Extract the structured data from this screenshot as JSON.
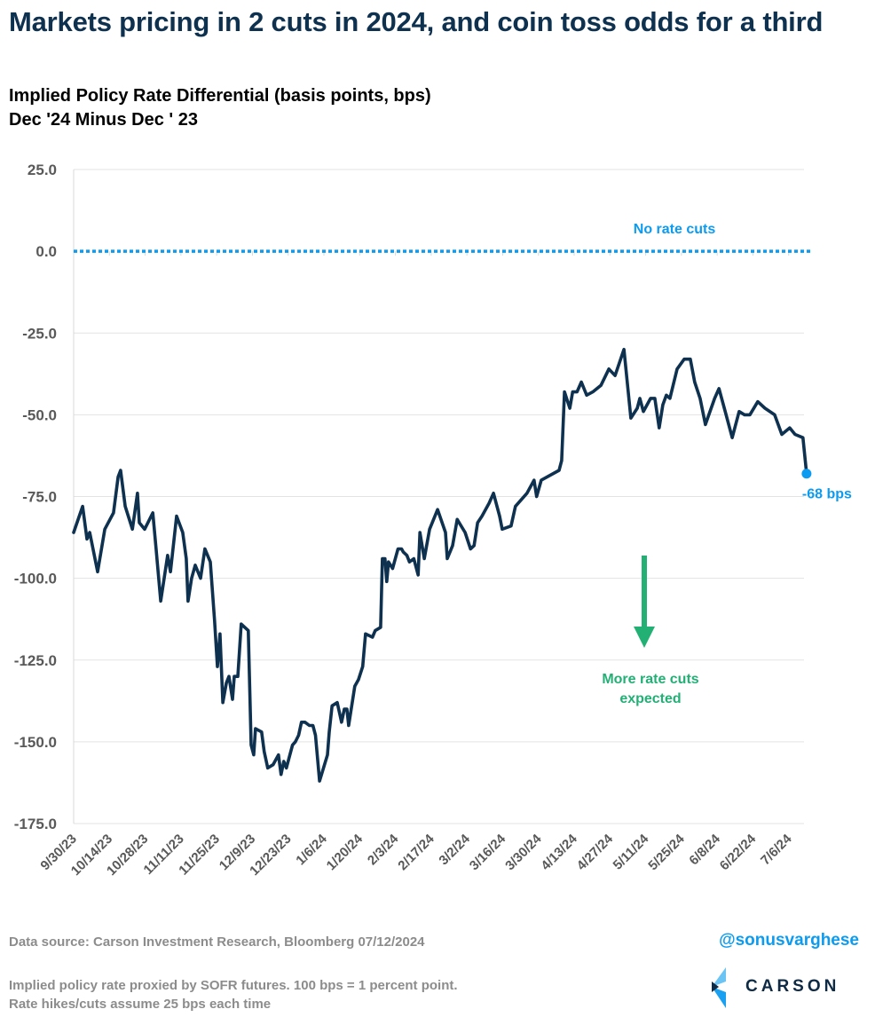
{
  "header": {
    "title": "Markets pricing in 2 cuts in 2024, and coin toss odds for a third",
    "subtitle_line1": "Implied Policy Rate Differential (basis points, bps)",
    "subtitle_line2": "Dec '24 Minus Dec ' 23"
  },
  "footer": {
    "source": "Data source: Carson Investment Research, Bloomberg   07/12/2024",
    "note_line1": "Implied policy rate proxied by SOFR futures. 100 bps = 1 percent point.",
    "note_line2": "Rate hikes/cuts assume 25 bps each time",
    "handle": "@sonusvarghese",
    "logo_text": "CARSON"
  },
  "colors": {
    "line": "#0e3150",
    "reference": "#0b9bf0",
    "highlight": "#0b9bf0",
    "arrow": "#23b075",
    "grid": "#e3e3e3",
    "axis_text": "#595959"
  },
  "chart_data": {
    "type": "line",
    "title": "Implied Policy Rate Differential (basis points, bps) Dec '24 Minus Dec ' 23",
    "xlabel": "",
    "ylabel": "",
    "ylim": [
      -175,
      25
    ],
    "yticks": [
      25,
      0,
      -25,
      -50,
      -75,
      -100,
      -125,
      -150,
      -175
    ],
    "ytick_labels": [
      "25.0",
      "0.0",
      "-25.0",
      "-50.0",
      "-75.0",
      "-100.0",
      "-125.0",
      "-150.0",
      "-175.0"
    ],
    "x_range_days": [
      0,
      286
    ],
    "x_origin_date": "9/30/23",
    "xticks_days": [
      0,
      14,
      28,
      42,
      56,
      70,
      84,
      98,
      112,
      126,
      140,
      154,
      168,
      182,
      196,
      210,
      224,
      238,
      252,
      266,
      280
    ],
    "xtick_labels": [
      "9/30/23",
      "10/14/23",
      "10/28/23",
      "11/11/23",
      "11/25/23",
      "12/9/23",
      "12/23/23",
      "1/6/24",
      "1/20/24",
      "2/3/24",
      "2/17/24",
      "3/2/24",
      "3/16/24",
      "3/30/24",
      "4/13/24",
      "4/27/24",
      "5/11/24",
      "5/25/24",
      "6/8/24",
      "6/22/24",
      "7/6/24"
    ],
    "grid": true,
    "legend": "none",
    "series": [
      {
        "name": "Implied Policy Rate Differential",
        "x_days": [
          0,
          3.5,
          5.2,
          6.3,
          9.4,
          12.2,
          15.6,
          17.4,
          18.4,
          20.2,
          23,
          25,
          25.7,
          27.8,
          31,
          32.3,
          34.1,
          36.8,
          37.9,
          40.3,
          42.7,
          44.1,
          44.8,
          46.2,
          47.6,
          49.7,
          51.4,
          53.5,
          55.2,
          56.3,
          57.3,
          58.4,
          59.8,
          60.8,
          62.2,
          62.9,
          64.3,
          65.6,
          68.4,
          69.5,
          70.5,
          71.2,
          73.6,
          74.6,
          76,
          78.1,
          80.2,
          81.2,
          82.3,
          83.3,
          85.7,
          86.8,
          88.1,
          89.2,
          90.6,
          92.3,
          93.7,
          94.7,
          96.3,
          99.4,
          100.1,
          101.2,
          103.2,
          104.9,
          106,
          107,
          107.7,
          110.1,
          111.5,
          113.2,
          114.3,
          117,
          118.1,
          120.2,
          120.9,
          121.9,
          122.6,
          123.3,
          124.9,
          127,
          128.4,
          129.1,
          130.5,
          131.5,
          133.2,
          134.9,
          135.6,
          137.3,
          139.4,
          142.5,
          145.6,
          146.3,
          148.4,
          150.2,
          153.3,
          155.4,
          156.8,
          158.2,
          159.9,
          162.7,
          164.4,
          166.8,
          167.8,
          171.3,
          173,
          177.5,
          180.3,
          181.3,
          183.1,
          190.1,
          191.1,
          192.2,
          194.3,
          195.4,
          197.1,
          198.8,
          200.9,
          203.3,
          206.5,
          209.6,
          212,
          215.5,
          218.2,
          220.7,
          221.7,
          223.1,
          225.9,
          227.6,
          229.3,
          230.7,
          232.1,
          233.5,
          236.3,
          239.1,
          241.5,
          243.2,
          245.3,
          247.4,
          251,
          252.7,
          255.5,
          257.9,
          260.6,
          262.7,
          264.8,
          267.9,
          270.7,
          274.5,
          277.3,
          280.4,
          282.5,
          285.6,
          287
        ],
        "values": [
          -86,
          -78,
          -88,
          -86,
          -98,
          -85,
          -80,
          -69,
          -67,
          -78,
          -85,
          -74,
          -83,
          -85,
          -80,
          -91,
          -107,
          -93,
          -98,
          -81,
          -86,
          -94,
          -107,
          -100,
          -96,
          -100,
          -91,
          -95,
          -113,
          -127,
          -117,
          -138,
          -132,
          -130,
          -137,
          -130,
          -130,
          -114,
          -116,
          -151,
          -154,
          -146,
          -147,
          -153,
          -158,
          -157,
          -154,
          -160,
          -156,
          -158,
          -151,
          -150,
          -148,
          -144,
          -144,
          -145,
          -145,
          -148,
          -162,
          -154,
          -147,
          -139,
          -138,
          -144,
          -140,
          -140,
          -145,
          -133,
          -131,
          -127,
          -117,
          -118,
          -116,
          -115,
          -94,
          -94,
          -101,
          -95,
          -97,
          -91,
          -91,
          -92,
          -93,
          -95,
          -94,
          -99,
          -86,
          -94,
          -85,
          -79,
          -86,
          -94,
          -90,
          -82,
          -86,
          -91,
          -90,
          -83,
          -81,
          -77,
          -74,
          -81,
          -85,
          -84,
          -78,
          -74,
          -70,
          -75,
          -70,
          -67,
          -64,
          -43,
          -48,
          -43,
          -43,
          -40,
          -44,
          -43,
          -41,
          -36,
          -38,
          -30,
          -51,
          -48,
          -45,
          -49,
          -45,
          -45,
          -54,
          -47,
          -44,
          -45,
          -36,
          -33,
          -33,
          -40,
          -45,
          -53,
          -45,
          -42,
          -50,
          -57,
          -49,
          -50,
          -50,
          -46,
          -48,
          -50,
          -56,
          -54,
          -56,
          -57,
          -68
        ]
      }
    ],
    "annotations": [
      {
        "type": "reference_line",
        "y": 0,
        "style": "dotted",
        "label": "No rate cuts"
      },
      {
        "type": "endpoint",
        "y": -68,
        "label": "-68 bps"
      },
      {
        "type": "arrow_down",
        "label_line1": "More rate cuts",
        "label_line2": "expected"
      }
    ]
  }
}
